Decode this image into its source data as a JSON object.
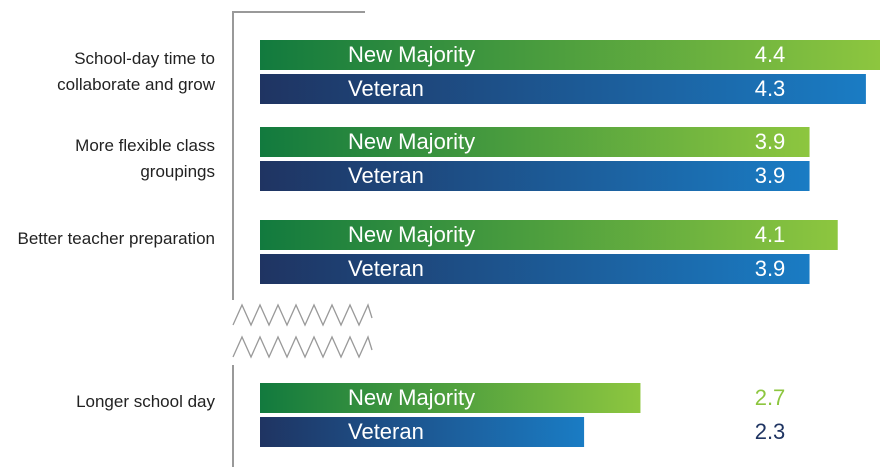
{
  "chart_data": {
    "type": "bar",
    "orientation": "horizontal",
    "categories": [
      "School-day time to collaborate and grow",
      "More flexible class groupings",
      "Better teacher preparation",
      "Longer school day"
    ],
    "series": [
      {
        "name": "New Majority",
        "colors": [
          "#127a3e",
          "#8dc63f"
        ],
        "label_color": "#8dc63f",
        "values": [
          4.4,
          3.9,
          4.1,
          2.7
        ]
      },
      {
        "name": "Veteran",
        "colors": [
          "#1f3462",
          "#1a7cc4"
        ],
        "label_color": "#1f3462",
        "values": [
          4.3,
          3.9,
          3.9,
          2.3
        ]
      }
    ],
    "xlim": [
      0,
      4.4
    ],
    "axis_break": true
  }
}
